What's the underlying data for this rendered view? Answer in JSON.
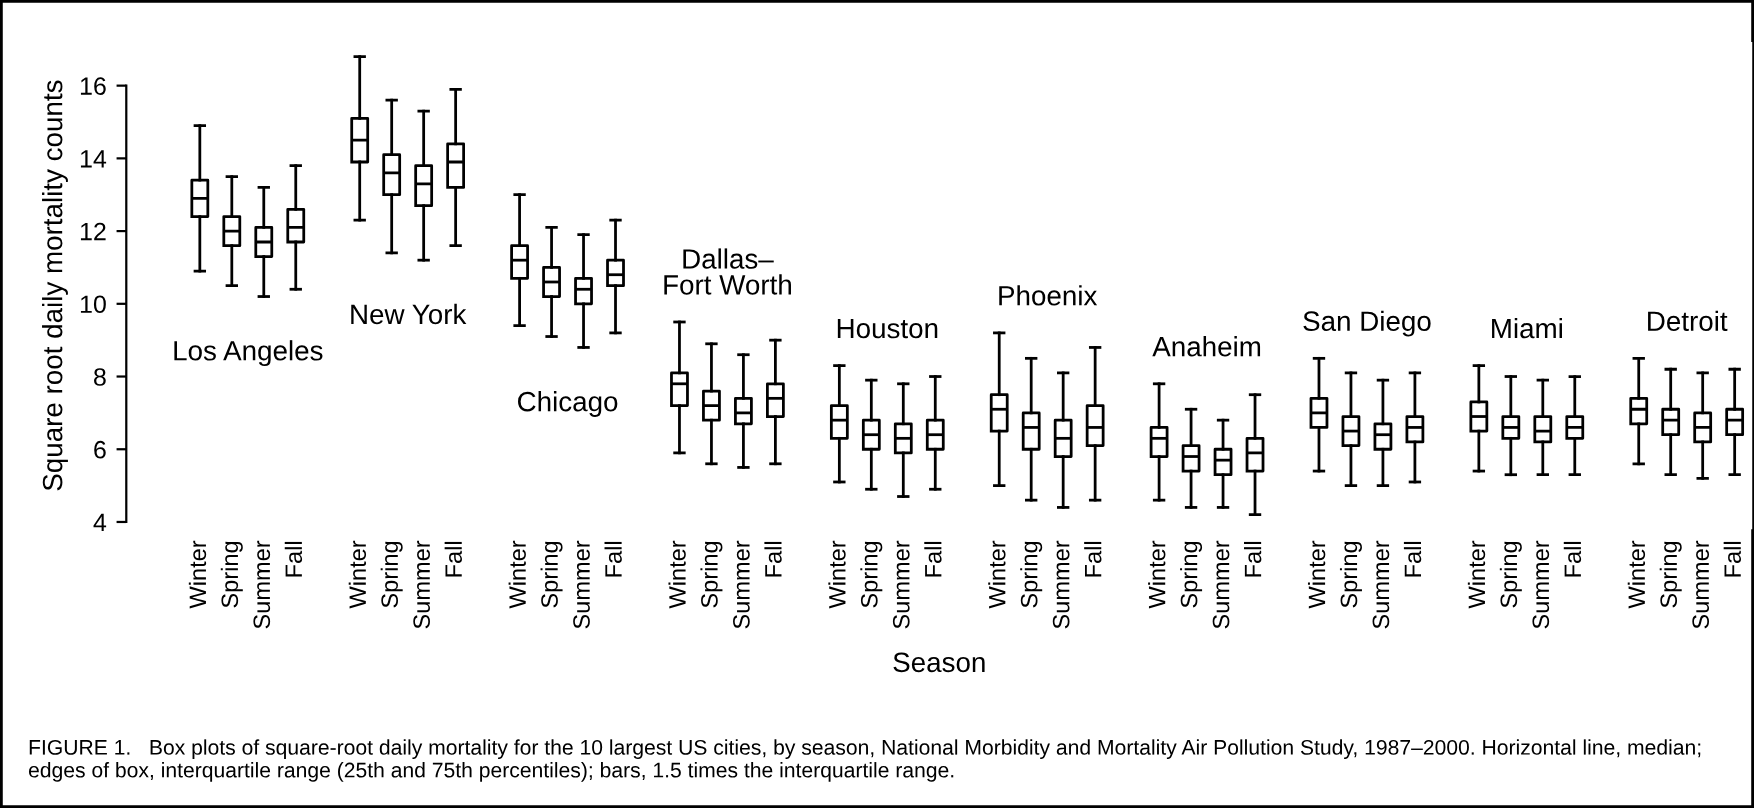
{
  "chart_data": {
    "type": "box",
    "xlabel": "Season",
    "ylabel": "Square root daily mortality counts",
    "categories": [
      "Winter",
      "Spring",
      "Summer",
      "Fall",
      null,
      "Winter",
      "Spring",
      "Summer",
      "Fall",
      null,
      "Winter",
      "Spring",
      "Summer",
      "Fall",
      null,
      "Winter",
      "Spring",
      "Summer",
      "Fall",
      null,
      "Winter",
      "Spring",
      "Summer",
      "Fall",
      null,
      "Winter",
      "Spring",
      "Summer",
      "Fall",
      null,
      "Winter",
      "Spring",
      "Summer",
      "Fall",
      null,
      "Winter",
      "Spring",
      "Summer",
      "Fall",
      null,
      "Winter",
      "Spring",
      "Summer",
      "Fall",
      null,
      "Winter",
      "Spring",
      "Summer",
      "Fall"
    ],
    "boxes": [
      {
        "low": 10.9,
        "q1": 12.4,
        "median": 12.9,
        "q3": 13.4,
        "high": 14.9
      },
      {
        "low": 10.5,
        "q1": 11.6,
        "median": 12.0,
        "q3": 12.4,
        "high": 13.5
      },
      {
        "low": 10.2,
        "q1": 11.3,
        "median": 11.7,
        "q3": 12.1,
        "high": 13.2
      },
      {
        "low": 10.4,
        "q1": 11.7,
        "median": 12.1,
        "q3": 12.6,
        "high": 13.8
      },
      null,
      {
        "low": 12.3,
        "q1": 13.9,
        "median": 14.5,
        "q3": 15.1,
        "high": 16.8
      },
      {
        "low": 11.4,
        "q1": 13.0,
        "median": 13.6,
        "q3": 14.1,
        "high": 15.6
      },
      {
        "low": 11.2,
        "q1": 12.7,
        "median": 13.3,
        "q3": 13.8,
        "high": 15.3
      },
      {
        "low": 11.6,
        "q1": 13.2,
        "median": 13.9,
        "q3": 14.4,
        "high": 15.9
      },
      null,
      {
        "low": 9.4,
        "q1": 10.7,
        "median": 11.2,
        "q3": 11.6,
        "high": 13.0
      },
      {
        "low": 9.1,
        "q1": 10.2,
        "median": 10.6,
        "q3": 11.0,
        "high": 12.1
      },
      {
        "low": 8.8,
        "q1": 10.0,
        "median": 10.4,
        "q3": 10.7,
        "high": 11.9
      },
      {
        "low": 9.2,
        "q1": 10.5,
        "median": 10.8,
        "q3": 11.2,
        "high": 12.3
      },
      null,
      {
        "low": 5.9,
        "q1": 7.2,
        "median": 7.8,
        "q3": 8.1,
        "high": 9.5
      },
      {
        "low": 5.6,
        "q1": 6.8,
        "median": 7.2,
        "q3": 7.6,
        "high": 8.9
      },
      {
        "low": 5.5,
        "q1": 6.7,
        "median": 7.0,
        "q3": 7.4,
        "high": 8.6
      },
      {
        "low": 5.6,
        "q1": 6.9,
        "median": 7.4,
        "q3": 7.8,
        "high": 9.0
      },
      null,
      {
        "low": 5.1,
        "q1": 6.3,
        "median": 6.8,
        "q3": 7.2,
        "high": 8.3
      },
      {
        "low": 4.9,
        "q1": 6.0,
        "median": 6.4,
        "q3": 6.8,
        "high": 7.9
      },
      {
        "low": 4.7,
        "q1": 5.9,
        "median": 6.3,
        "q3": 6.7,
        "high": 7.8
      },
      {
        "low": 4.9,
        "q1": 6.0,
        "median": 6.4,
        "q3": 6.8,
        "high": 8.0
      },
      null,
      {
        "low": 5.0,
        "q1": 6.5,
        "median": 7.1,
        "q3": 7.5,
        "high": 9.2
      },
      {
        "low": 4.6,
        "q1": 6.0,
        "median": 6.6,
        "q3": 7.0,
        "high": 8.5
      },
      {
        "low": 4.4,
        "q1": 5.8,
        "median": 6.3,
        "q3": 6.8,
        "high": 8.1
      },
      {
        "low": 4.6,
        "q1": 6.1,
        "median": 6.6,
        "q3": 7.2,
        "high": 8.8
      },
      null,
      {
        "low": 4.6,
        "q1": 5.8,
        "median": 6.3,
        "q3": 6.6,
        "high": 7.8
      },
      {
        "low": 4.4,
        "q1": 5.4,
        "median": 5.8,
        "q3": 6.1,
        "high": 7.1
      },
      {
        "low": 4.4,
        "q1": 5.3,
        "median": 5.7,
        "q3": 6.0,
        "high": 6.8
      },
      {
        "low": 4.2,
        "q1": 5.4,
        "median": 5.9,
        "q3": 6.3,
        "high": 7.5
      },
      null,
      {
        "low": 5.4,
        "q1": 6.6,
        "median": 7.0,
        "q3": 7.4,
        "high": 8.5
      },
      {
        "low": 5.0,
        "q1": 6.1,
        "median": 6.5,
        "q3": 6.9,
        "high": 8.1
      },
      {
        "low": 5.0,
        "q1": 6.0,
        "median": 6.4,
        "q3": 6.7,
        "high": 7.9
      },
      {
        "low": 5.1,
        "q1": 6.2,
        "median": 6.6,
        "q3": 6.9,
        "high": 8.1
      },
      null,
      {
        "low": 5.4,
        "q1": 6.5,
        "median": 6.9,
        "q3": 7.3,
        "high": 8.3
      },
      {
        "low": 5.3,
        "q1": 6.3,
        "median": 6.6,
        "q3": 6.9,
        "high": 8.0
      },
      {
        "low": 5.3,
        "q1": 6.2,
        "median": 6.5,
        "q3": 6.9,
        "high": 7.9
      },
      {
        "low": 5.3,
        "q1": 6.3,
        "median": 6.6,
        "q3": 6.9,
        "high": 8.0
      },
      null,
      {
        "low": 5.6,
        "q1": 6.7,
        "median": 7.1,
        "q3": 7.4,
        "high": 8.5
      },
      {
        "low": 5.3,
        "q1": 6.4,
        "median": 6.8,
        "q3": 7.1,
        "high": 8.2
      },
      {
        "low": 5.2,
        "q1": 6.2,
        "median": 6.6,
        "q3": 7.0,
        "high": 8.1
      },
      {
        "low": 5.3,
        "q1": 6.4,
        "median": 6.8,
        "q3": 7.1,
        "high": 8.2
      }
    ],
    "ylim": [
      3.8,
      17.2
    ],
    "yticks": [
      4,
      6,
      8,
      10,
      12,
      14,
      16
    ],
    "annotations": [
      "Los Angeles",
      "New York",
      "Chicago",
      "Dallas–\nFort Worth",
      "Houston",
      "Phoenix",
      "Anaheim",
      "San Diego",
      "Miami",
      "Detroit",
      "FIGURE 1.   Box plots of square-root daily mortality for the 10 largest US cities, by season, National Morbidity and Mortality Air Pollution Study, 1987–2000. Horizontal line, median; edges of box, interquartile range (25th and 75th percentiles); bars, 1.5 times the interquartile range."
    ]
  }
}
